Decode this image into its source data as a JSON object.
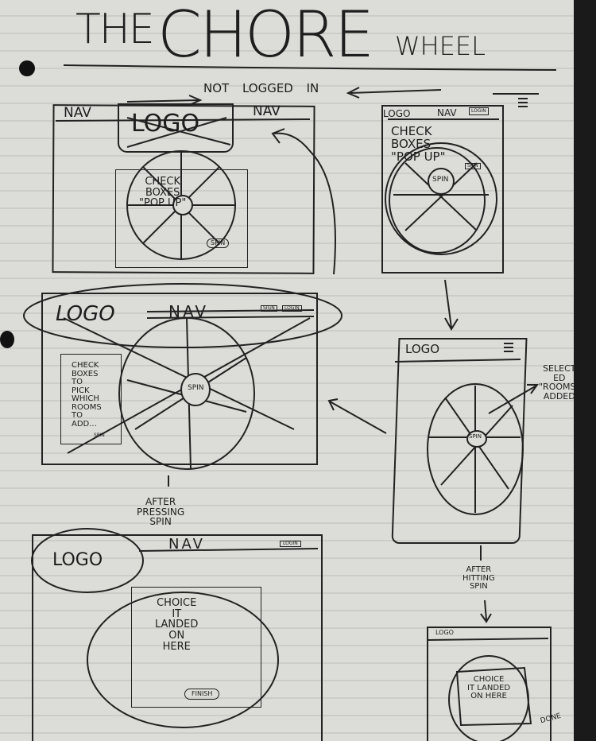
{
  "title": {
    "the": "THE",
    "chore": "CHORE",
    "wheel": "WHEEL"
  },
  "subtitle": "NOT LOGGED IN",
  "mock1": {
    "nav_left": "NAV",
    "logo": "LOGO",
    "nav_right": "NAV",
    "wheel_note": "CHECK\nBOXES\n\"POP UP\"",
    "spin": "SPIN"
  },
  "mock2": {
    "logo": "LOGO",
    "nav": "NAV",
    "login": "LOGIN",
    "note": "CHECK\nBOXES\n\"POP UP\"",
    "spin": "SPIN"
  },
  "mock3": {
    "logo": "LOGO",
    "nav": "NAV",
    "sign": "SIGN",
    "login": "LOGIN",
    "panel_text": "CHECK\nBOXES\nTO\nPICK\nWHICH\nROOMS\nTO\nADD...",
    "spin_small": "SPIN",
    "spin": "SPIN"
  },
  "mock4": {
    "logo": "LOGO",
    "spin": "SPIN"
  },
  "annotations": {
    "selected": "SELECT\nED\n\"ROOMS\"\nADDED",
    "after_pressing": "AFTER\nPRESSING\nSPIN",
    "after_hitting": "AFTER\nHITTING\nSPIN",
    "done": "DONE"
  },
  "mock5": {
    "logo": "LOGO",
    "nav": "NAV",
    "login": "LOGIN",
    "choice": "CHOICE\nIT\nLANDED\nON\nHERE",
    "button": "FINISH"
  },
  "mock6": {
    "logo": "LOGO",
    "choice": "CHOICE\nIT LANDED\nON HERE"
  }
}
